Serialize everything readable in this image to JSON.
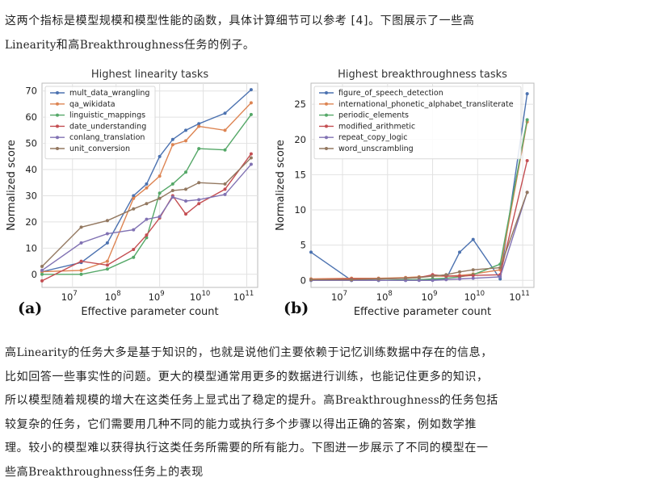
{
  "text": {
    "intro_line1": "这两个指标是模型规模和模型性能的函数，具体计算细节可以参考 [4]。下图展示了一些高",
    "intro_line2_term": "Linearity",
    "intro_line2_mid": "和高",
    "intro_line2_term2": "Breakthroughness",
    "intro_line2_end": "任务的例子。",
    "body_line1a": "高",
    "body_line1_term": "Linearity",
    "body_line1b": "的任务大多是基于知识的，也就是说他们主要依赖于记忆训练数据中存在的信息，",
    "body_line2": "比如回答一些事实性的问题。更大的模型通常用更多的数据进行训练，也能记住更多的知识，",
    "body_line3a": "所以模型随着规模的增大在这类任务上显式出了稳定的提升。高",
    "body_line3_term": "Breakthroughness",
    "body_line3b": "的任务包括",
    "body_line4": "较复杂的任务，它们需要用几种不同的能力或执行多个步骤以得出正确的答案，例如数学推",
    "body_line5": "理。较小的模型难以获得执行这类任务所需要的所有能力。下图进一步展示了不同的模型在一",
    "body_line6a": "些高",
    "body_line6_term": "Breakthroughness",
    "body_line6b": "任务上的表现"
  },
  "chart_data": [
    {
      "type": "line",
      "panel_label": "(a)",
      "title": "Highest linearity tasks",
      "xlabel": "Effective parameter count",
      "ylabel": "Normalized score",
      "xscale": "log",
      "xlim_exp": [
        6.3,
        11.25
      ],
      "xticks": [
        {
          "exp": 7,
          "label": "10",
          "sup": "7"
        },
        {
          "exp": 8,
          "label": "10",
          "sup": "8"
        },
        {
          "exp": 9,
          "label": "10",
          "sup": "9"
        },
        {
          "exp": 10,
          "label": "10",
          "sup": "10"
        },
        {
          "exp": 11,
          "label": "10",
          "sup": "11"
        }
      ],
      "ylim": [
        -5,
        73
      ],
      "yticks": [
        0,
        10,
        20,
        30,
        40,
        50,
        60,
        70
      ],
      "grid": true,
      "legend_position": "top-left",
      "series": [
        {
          "name": "mult_data_wrangling",
          "color": "#4c72b0",
          "x_exp": [
            6.3,
            7.2,
            7.8,
            8.4,
            8.7,
            9.0,
            9.3,
            9.6,
            9.9,
            10.5,
            11.1
          ],
          "y": [
            1,
            4.5,
            12,
            30,
            34.5,
            45,
            51.5,
            55,
            57.5,
            61.5,
            70.5
          ]
        },
        {
          "name": "qa_wikidata",
          "color": "#dd8452",
          "x_exp": [
            6.3,
            7.2,
            7.8,
            8.4,
            8.7,
            9.0,
            9.3,
            9.6,
            9.9,
            10.5,
            11.1
          ],
          "y": [
            1,
            1.5,
            5,
            29,
            33,
            37.5,
            49.5,
            51,
            56.5,
            55,
            65.5
          ]
        },
        {
          "name": "linguistic_mappings",
          "color": "#55a868",
          "x_exp": [
            6.3,
            7.2,
            7.8,
            8.4,
            8.7,
            9.0,
            9.3,
            9.6,
            9.9,
            10.5,
            11.1
          ],
          "y": [
            0,
            0,
            2,
            6.5,
            14,
            31,
            34.5,
            39,
            48,
            47.5,
            61
          ]
        },
        {
          "name": "date_understanding",
          "color": "#c44e52",
          "x_exp": [
            6.3,
            7.2,
            7.8,
            8.4,
            8.7,
            9.0,
            9.3,
            9.6,
            9.9,
            10.5,
            11.1
          ],
          "y": [
            -2.5,
            5,
            3.5,
            9.5,
            15,
            21.5,
            30,
            23,
            27,
            32.5,
            46
          ]
        },
        {
          "name": "conlang_translation",
          "color": "#8172b3",
          "x_exp": [
            6.3,
            7.2,
            7.8,
            8.4,
            8.7,
            9.0,
            9.3,
            9.6,
            9.9,
            10.5,
            11.1
          ],
          "y": [
            1.5,
            12,
            15.5,
            17,
            21,
            22,
            29.5,
            28,
            28.5,
            30.5,
            42
          ]
        },
        {
          "name": "unit_conversion",
          "color": "#937860",
          "x_exp": [
            6.3,
            7.2,
            7.8,
            8.4,
            8.7,
            9.0,
            9.3,
            9.6,
            9.9,
            10.5,
            11.1
          ],
          "y": [
            3,
            18,
            20.5,
            25,
            27,
            29,
            32,
            32.5,
            35,
            34.5,
            44.5
          ]
        }
      ]
    },
    {
      "type": "line",
      "panel_label": "(b)",
      "title": "Highest breakthroughness tasks",
      "xlabel": "Effective parameter count",
      "ylabel": "Normalized score",
      "xscale": "log",
      "xlim_exp": [
        6.3,
        11.25
      ],
      "xticks": [
        {
          "exp": 7,
          "label": "10",
          "sup": "7"
        },
        {
          "exp": 8,
          "label": "10",
          "sup": "8"
        },
        {
          "exp": 9,
          "label": "10",
          "sup": "9"
        },
        {
          "exp": 10,
          "label": "10",
          "sup": "10"
        },
        {
          "exp": 11,
          "label": "10",
          "sup": "11"
        }
      ],
      "ylim": [
        -1,
        28
      ],
      "yticks": [
        0,
        5,
        10,
        15,
        20,
        25
      ],
      "grid": true,
      "legend_position": "top-left",
      "series": [
        {
          "name": "figure_of_speech_detection",
          "color": "#4c72b0",
          "x_exp": [
            6.3,
            7.2,
            7.8,
            8.4,
            8.7,
            9.0,
            9.3,
            9.6,
            9.9,
            10.5,
            11.1
          ],
          "y": [
            4,
            0,
            0,
            0,
            0.1,
            0.1,
            0.2,
            4,
            5.8,
            0.2,
            26.5
          ]
        },
        {
          "name": "international_phonetic_alphabet_transliterate",
          "color": "#dd8452",
          "x_exp": [
            6.3,
            7.2,
            7.8,
            8.4,
            8.7,
            9.0,
            9.3,
            9.6,
            9.9,
            10.5,
            11.1
          ],
          "y": [
            0.2,
            0.3,
            0.3,
            0.4,
            0.5,
            0.6,
            0.6,
            0.7,
            0.9,
            1.5,
            22.5
          ]
        },
        {
          "name": "periodic_elements",
          "color": "#55a868",
          "x_exp": [
            6.3,
            7.2,
            7.8,
            8.4,
            8.7,
            9.0,
            9.3,
            9.6,
            9.9,
            10.5,
            11.1
          ],
          "y": [
            0,
            0,
            0,
            0.1,
            0.1,
            0.2,
            0.3,
            0.5,
            0.8,
            2.3,
            22.8
          ]
        },
        {
          "name": "modified_arithmetic",
          "color": "#c44e52",
          "x_exp": [
            6.3,
            7.2,
            7.8,
            8.4,
            8.7,
            9.0,
            9.3,
            9.6,
            9.9,
            10.5,
            11.1
          ],
          "y": [
            0.1,
            0.2,
            0.2,
            0.3,
            0.4,
            0.8,
            0.6,
            0.6,
            0.7,
            0.8,
            17
          ]
        },
        {
          "name": "repeat_copy_logic",
          "color": "#8172b3",
          "x_exp": [
            6.3,
            7.2,
            7.8,
            8.4,
            8.7,
            9.0,
            9.3,
            9.6,
            9.9,
            10.5,
            11.1
          ],
          "y": [
            0,
            0,
            0,
            0,
            0,
            0,
            0.1,
            0.2,
            0.3,
            0.5,
            12.5
          ]
        },
        {
          "name": "word_unscrambling",
          "color": "#937860",
          "x_exp": [
            6.3,
            7.2,
            7.8,
            8.4,
            8.7,
            9.0,
            9.3,
            9.6,
            9.9,
            10.5,
            11.1
          ],
          "y": [
            0.1,
            0.1,
            0.2,
            0.3,
            0.4,
            0.6,
            0.8,
            1.2,
            1.5,
            1.8,
            12.5
          ]
        }
      ]
    }
  ]
}
